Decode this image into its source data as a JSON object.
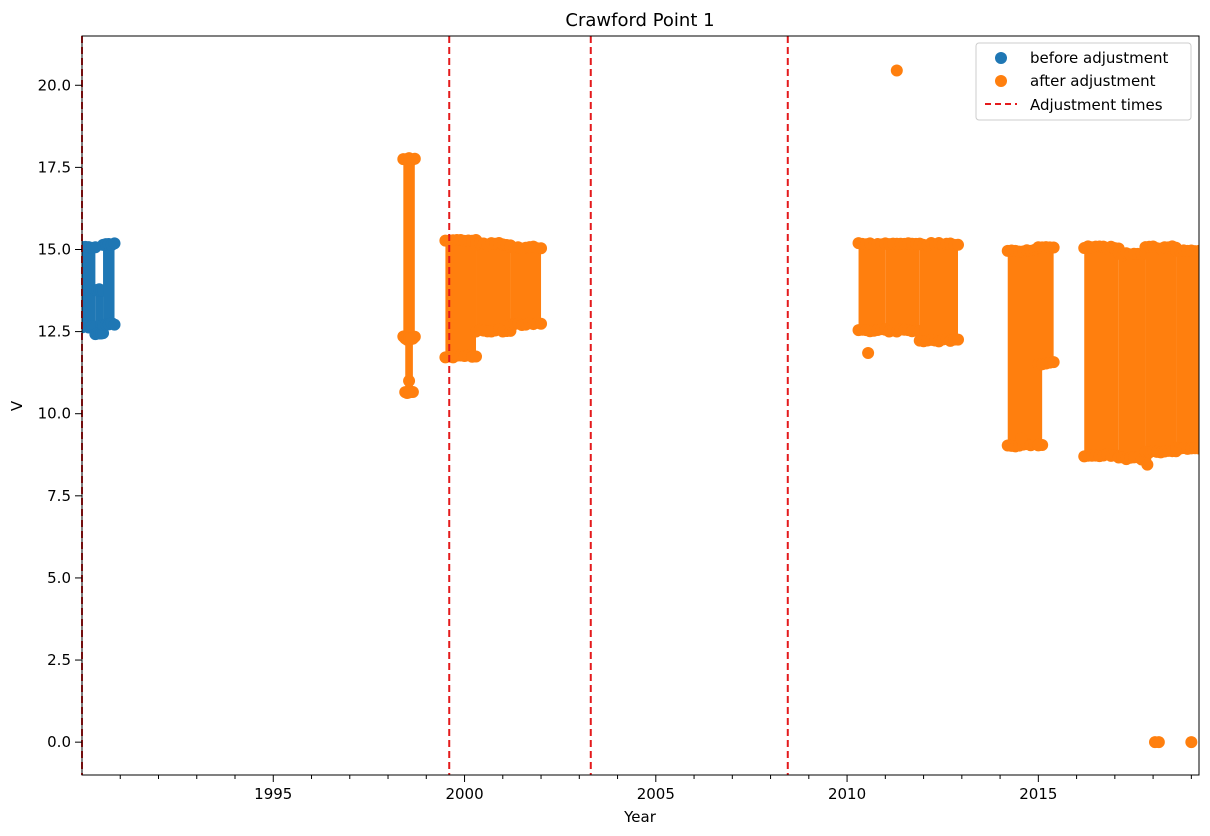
{
  "chart_data": {
    "type": "scatter",
    "title": "Crawford Point 1",
    "xlabel": "Year",
    "ylabel": "V",
    "xlim": [
      1990.0,
      2019.2
    ],
    "ylim": [
      -1.0,
      21.5
    ],
    "x_ticks": [
      1995,
      2000,
      2005,
      2010,
      2015
    ],
    "x_tick_labels": [
      "1995",
      "2000",
      "2005",
      "2010",
      "2015"
    ],
    "y_ticks": [
      0.0,
      2.5,
      5.0,
      7.5,
      10.0,
      12.5,
      15.0,
      17.5,
      20.0
    ],
    "y_tick_labels": [
      "0.0",
      "2.5",
      "5.0",
      "7.5",
      "10.0",
      "12.5",
      "15.0",
      "17.5",
      "20.0"
    ],
    "grid": false,
    "legend_position": "top-right",
    "legend": [
      {
        "label": "before adjustment",
        "marker": "circle",
        "color": "#1f77b4"
      },
      {
        "label": "after adjustment",
        "marker": "circle",
        "color": "#ff7f0e"
      },
      {
        "label": "Adjustment times",
        "marker": "dashed-line",
        "color": "#e41a1c"
      }
    ],
    "adjustment_times": [
      1990.0,
      1999.6,
      2003.3,
      2008.45
    ],
    "series": [
      {
        "name": "before adjustment",
        "color": "#1f77b4",
        "clusters": [
          {
            "x": [
              1990.0,
              1990.35
            ],
            "y": [
              12.6,
              15.1
            ]
          },
          {
            "x": [
              1990.35,
              1990.55
            ],
            "y": [
              12.4,
              13.8
            ]
          },
          {
            "x": [
              1990.55,
              1990.85
            ],
            "y": [
              12.7,
              15.2
            ]
          }
        ]
      },
      {
        "name": "after adjustment",
        "color": "#ff7f0e",
        "clusters": [
          {
            "x": [
              1998.4,
              1998.7
            ],
            "y": [
              12.3,
              17.8
            ]
          },
          {
            "x": [
              1998.45,
              1998.65
            ],
            "y": [
              10.6,
              12.3
            ]
          },
          {
            "x": [
              1999.5,
              2000.3
            ],
            "y": [
              11.7,
              15.3
            ]
          },
          {
            "x": [
              2000.3,
              2001.2
            ],
            "y": [
              12.5,
              15.2
            ]
          },
          {
            "x": [
              2001.2,
              2002.0
            ],
            "y": [
              12.7,
              15.1
            ]
          },
          {
            "x": [
              2010.3,
              2011.0
            ],
            "y": [
              12.5,
              15.2
            ]
          },
          {
            "x": [
              2011.0,
              2011.9
            ],
            "y": [
              12.5,
              15.2
            ]
          },
          {
            "x": [
              2011.9,
              2012.9
            ],
            "y": [
              12.2,
              15.2
            ]
          },
          {
            "x": [
              2014.2,
              2015.1
            ],
            "y": [
              9.0,
              15.0
            ]
          },
          {
            "x": [
              2015.0,
              2015.4
            ],
            "y": [
              11.5,
              15.1
            ]
          },
          {
            "x": [
              2016.2,
              2017.1
            ],
            "y": [
              8.7,
              15.1
            ]
          },
          {
            "x": [
              2017.1,
              2017.8
            ],
            "y": [
              8.6,
              14.9
            ]
          },
          {
            "x": [
              2017.8,
              2018.6
            ],
            "y": [
              8.8,
              15.1
            ]
          },
          {
            "x": [
              2018.6,
              2019.2
            ],
            "y": [
              8.9,
              15.0
            ]
          }
        ],
        "points": [
          {
            "x": 2011.3,
            "y": 20.45
          },
          {
            "x": 2010.55,
            "y": 11.85
          },
          {
            "x": 2017.85,
            "y": 8.45
          },
          {
            "x": 2014.55,
            "y": 9.25
          },
          {
            "x": 2015.0,
            "y": 9.05
          },
          {
            "x": 2018.05,
            "y": 0.0
          },
          {
            "x": 2018.15,
            "y": 0.0
          },
          {
            "x": 2019.0,
            "y": 0.0
          },
          {
            "x": 1998.55,
            "y": 11.0
          },
          {
            "x": 1998.55,
            "y": 10.65
          }
        ]
      }
    ]
  }
}
